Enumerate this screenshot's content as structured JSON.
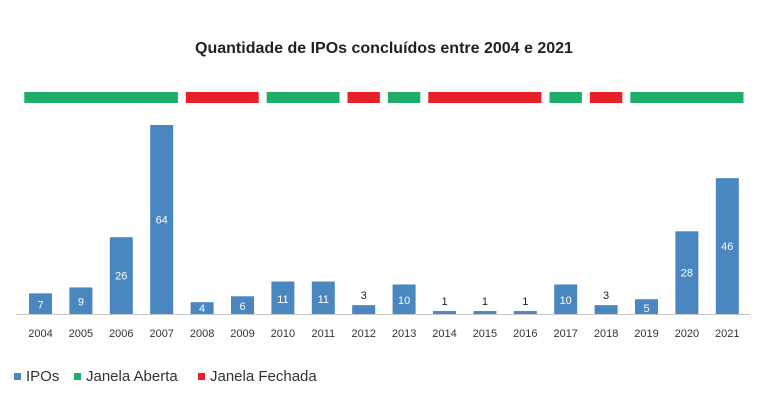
{
  "chart_data": {
    "type": "bar",
    "title": "Quantidade de IPOs concluídos entre 2004 e 2021",
    "xlabel": "",
    "ylabel": "",
    "ylim": [
      0,
      64
    ],
    "grid": false,
    "categories": [
      "2004",
      "2005",
      "2006",
      "2007",
      "2008",
      "2009",
      "2010",
      "2011",
      "2012",
      "2013",
      "2014",
      "2015",
      "2016",
      "2017",
      "2018",
      "2019",
      "2020",
      "2021"
    ],
    "series": [
      {
        "name": "IPOs",
        "color": "#4a86c0",
        "values": [
          7,
          9,
          26,
          64,
          4,
          6,
          11,
          11,
          3,
          10,
          1,
          1,
          1,
          10,
          3,
          5,
          28,
          46
        ]
      }
    ],
    "windows": [
      {
        "status": "Janela Aberta",
        "from": "2004",
        "to": "2007"
      },
      {
        "status": "Janela Fechada",
        "from": "2008",
        "to": "2009"
      },
      {
        "status": "Janela Aberta",
        "from": "2010",
        "to": "2011"
      },
      {
        "status": "Janela Fechada",
        "from": "2012",
        "to": "2012"
      },
      {
        "status": "Janela Aberta",
        "from": "2013",
        "to": "2013"
      },
      {
        "status": "Janela Fechada",
        "from": "2014",
        "to": "2016"
      },
      {
        "status": "Janela Aberta",
        "from": "2017",
        "to": "2017"
      },
      {
        "status": "Janela Fechada",
        "from": "2018",
        "to": "2018"
      },
      {
        "status": "Janela Aberta",
        "from": "2019",
        "to": "2021"
      }
    ],
    "legend": {
      "placement": "bottom-left",
      "entries": [
        {
          "label": "IPOs",
          "color": "#4a86c0"
        },
        {
          "label": "Janela Aberta",
          "color": "#1fae6a"
        },
        {
          "label": "Janela Fechada",
          "color": "#e8202a"
        }
      ]
    }
  }
}
